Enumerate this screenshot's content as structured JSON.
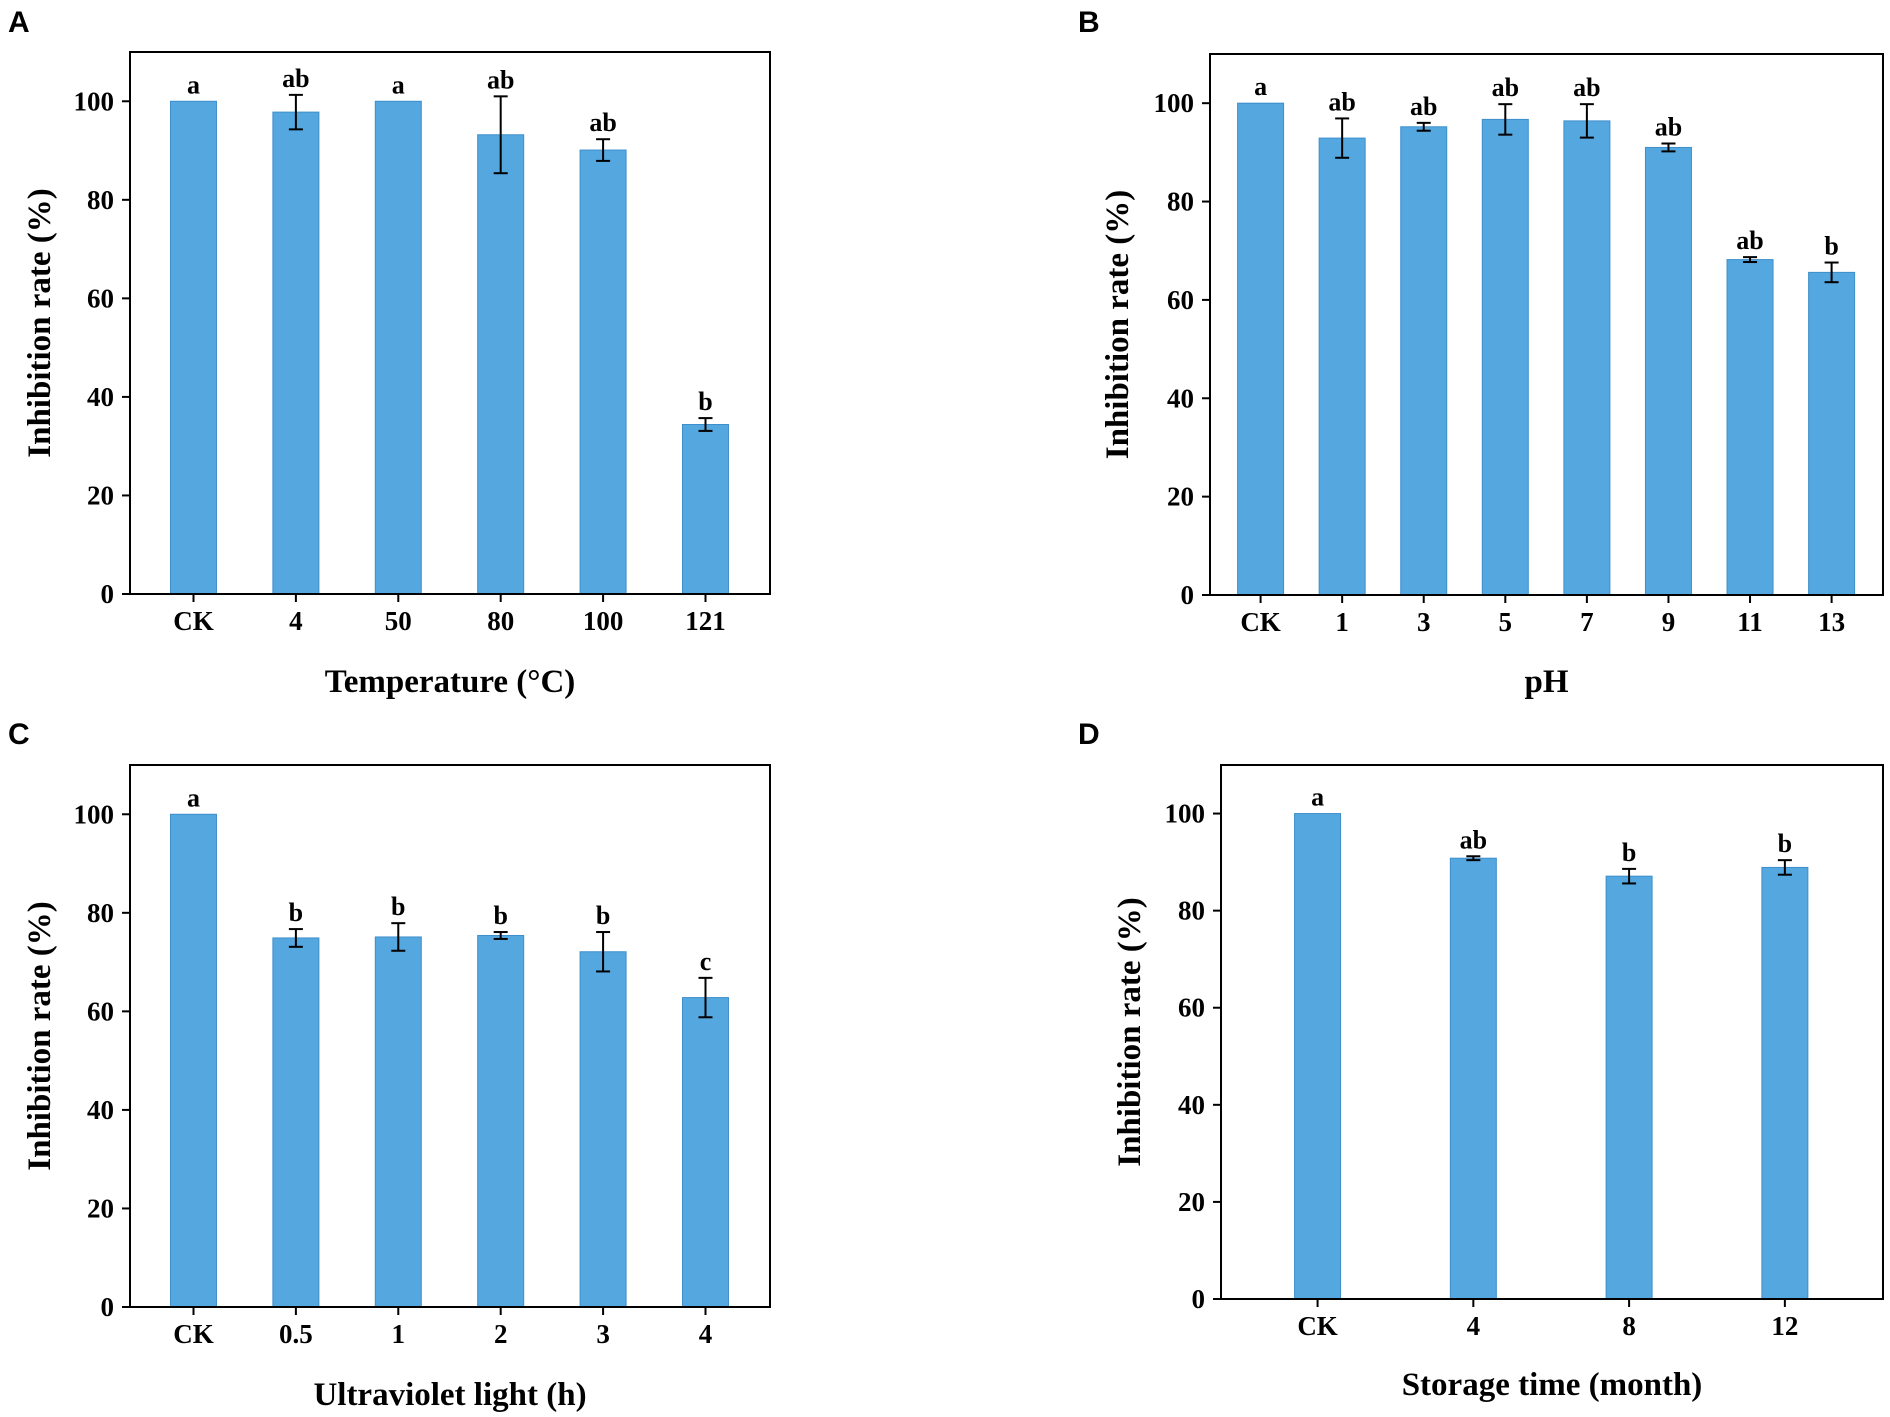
{
  "figure": {
    "bar_color": "#55a7e0",
    "bar_edge_color": "#3d8fcb",
    "axis_color": "#000000"
  },
  "chart_data": [
    {
      "panel": "A",
      "type": "bar",
      "xlabel": "Temperature (°C)",
      "ylabel": "Inhibition rate (%)",
      "ylim": [
        0,
        110
      ],
      "yticks": [
        0,
        20,
        40,
        60,
        80,
        100
      ],
      "categories": [
        "CK",
        "4",
        "50",
        "80",
        "100",
        "121"
      ],
      "values": [
        100,
        97.8,
        100,
        93.2,
        90.1,
        34.4
      ],
      "errors": [
        0,
        3.5,
        0,
        7.8,
        2.2,
        1.3
      ],
      "significance": [
        "a",
        "ab",
        "a",
        "ab",
        "ab",
        "b"
      ]
    },
    {
      "panel": "B",
      "type": "bar",
      "xlabel": "pH",
      "ylabel": "Inhibition rate (%)",
      "ylim": [
        0,
        110
      ],
      "yticks": [
        0,
        20,
        40,
        60,
        80,
        100
      ],
      "categories": [
        "CK",
        "1",
        "3",
        "5",
        "7",
        "9",
        "11",
        "13"
      ],
      "values": [
        100,
        92.9,
        95.2,
        96.7,
        96.4,
        91.0,
        68.2,
        65.6
      ],
      "errors": [
        0,
        4.0,
        0.8,
        3.1,
        3.4,
        0.8,
        0.5,
        2.0
      ],
      "significance": [
        "a",
        "ab",
        "ab",
        "ab",
        "ab",
        "ab",
        "ab",
        "b"
      ]
    },
    {
      "panel": "C",
      "type": "bar",
      "xlabel": "Ultraviolet light (h)",
      "ylabel": "Inhibition rate (%)",
      "ylim": [
        0,
        110
      ],
      "yticks": [
        0,
        20,
        40,
        60,
        80,
        100
      ],
      "categories": [
        "CK",
        "0.5",
        "1",
        "2",
        "3",
        "4"
      ],
      "values": [
        100,
        74.9,
        75.1,
        75.4,
        72.1,
        62.8
      ],
      "errors": [
        0,
        1.8,
        2.8,
        0.7,
        4.0,
        4.0
      ],
      "significance": [
        "a",
        "b",
        "b",
        "b",
        "b",
        "c"
      ]
    },
    {
      "panel": "D",
      "type": "bar",
      "xlabel": "Storage time (month)",
      "ylabel": "Inhibition rate (%)",
      "ylim": [
        0,
        110
      ],
      "yticks": [
        0,
        20,
        40,
        60,
        80,
        100
      ],
      "categories": [
        "CK",
        "4",
        "8",
        "12"
      ],
      "values": [
        100,
        90.8,
        87.1,
        88.9
      ],
      "errors": [
        0,
        0.4,
        1.5,
        1.5
      ],
      "significance": [
        "a",
        "ab",
        "b",
        "b"
      ]
    }
  ]
}
